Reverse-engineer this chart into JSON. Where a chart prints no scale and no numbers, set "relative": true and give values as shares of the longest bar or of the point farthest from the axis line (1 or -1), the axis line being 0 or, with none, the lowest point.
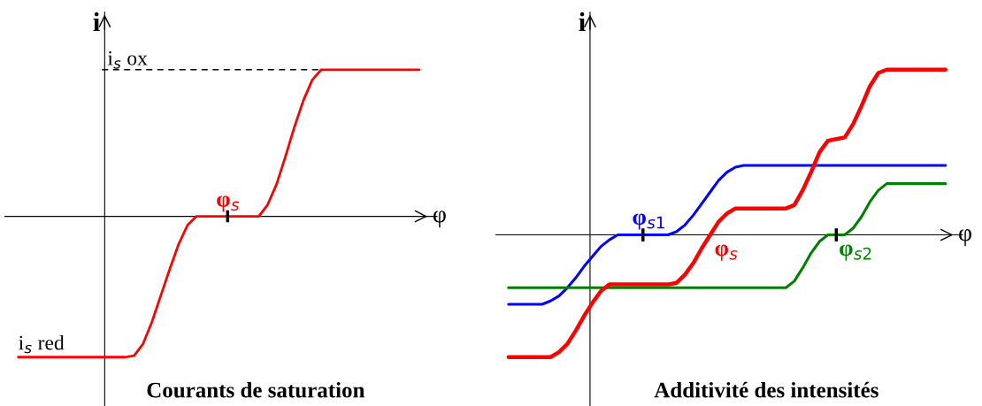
{
  "chart_data": [
    {
      "type": "line",
      "title": "Courants de saturation",
      "xlabel": "φ",
      "ylabel": "i",
      "relative": true,
      "categories": [
        null,
        null,
        null,
        null,
        null,
        null,
        null,
        null,
        null,
        null,
        null,
        null,
        null,
        null,
        null,
        null,
        null,
        null,
        null,
        null,
        null,
        null,
        null,
        null,
        null,
        null,
        null,
        null,
        null,
        null,
        null,
        null,
        null,
        null,
        null,
        null,
        null,
        null,
        null,
        null,
        null,
        null,
        null,
        null,
        null,
        null
      ],
      "series": [
        {
          "name": "φ$_{s}$",
          "color": "#ff0000",
          "values": [
            -0.96,
            -0.96,
            -0.96,
            -0.96,
            -0.96,
            -0.96,
            -0.96,
            -0.96,
            -0.96,
            -0.96,
            -0.96,
            -0.96,
            -0.96,
            -0.95,
            -0.87,
            -0.72,
            -0.54,
            -0.36,
            -0.19,
            -0.06,
            0,
            0,
            0,
            0,
            0,
            0,
            0,
            0,
            0.08,
            0.22,
            0.41,
            0.61,
            0.79,
            0.93,
            1,
            1,
            1,
            1,
            1,
            1,
            1,
            1,
            1,
            1,
            1,
            1
          ]
        }
      ],
      "ref_lines": [
        {
          "axis": "y",
          "value": 1,
          "label": "i$_{s}$ ox",
          "color": "#000000",
          "line_style": "dashed"
        }
      ],
      "annotations": [
        "i$_{s}$ red"
      ]
    },
    {
      "type": "line",
      "title": "Additivité des intensités",
      "xlabel": "φ",
      "ylabel": "i",
      "relative": true,
      "categories": [
        null,
        null,
        null,
        null,
        null,
        null,
        null,
        null,
        null,
        null,
        null,
        null,
        null,
        null,
        null,
        null,
        null,
        null,
        null,
        null,
        null,
        null,
        null,
        null,
        null,
        null,
        null,
        null,
        null,
        null,
        null,
        null,
        null,
        null,
        null,
        null,
        null,
        null,
        null,
        null,
        null,
        null,
        null,
        null,
        null,
        null,
        null,
        null,
        null,
        null,
        null,
        null,
        null
      ],
      "series": [
        {
          "name": "φ$_{s1}$",
          "color": "#0000ff",
          "values": [
            -0.42,
            -0.42,
            -0.42,
            -0.42,
            -0.42,
            -0.4,
            -0.37,
            -0.32,
            -0.26,
            -0.19,
            -0.13,
            -0.07,
            -0.03,
            0,
            0,
            0,
            0,
            0,
            0,
            0,
            0.02,
            0.06,
            0.12,
            0.19,
            0.26,
            0.33,
            0.38,
            0.41,
            0.42,
            0.42,
            0.42,
            0.42,
            0.42,
            0.42,
            0.42,
            0.42,
            0.42,
            0.42,
            0.42,
            0.42,
            0.42,
            0.42,
            0.42,
            0.42,
            0.42,
            0.42,
            0.42,
            0.42,
            0.42,
            0.42,
            0.42,
            0.42,
            0.42
          ]
        },
        {
          "name": "φ$_{s2}$",
          "color": "#008000",
          "values": [
            -0.32,
            -0.32,
            -0.32,
            -0.32,
            -0.32,
            -0.32,
            -0.32,
            -0.32,
            -0.32,
            -0.32,
            -0.32,
            -0.32,
            -0.32,
            -0.32,
            -0.32,
            -0.32,
            -0.32,
            -0.32,
            -0.32,
            -0.32,
            -0.32,
            -0.32,
            -0.32,
            -0.32,
            -0.32,
            -0.32,
            -0.32,
            -0.32,
            -0.32,
            -0.32,
            -0.32,
            -0.32,
            -0.32,
            -0.32,
            -0.28,
            -0.2,
            -0.11,
            -0.04,
            0,
            0,
            0,
            0.04,
            0.11,
            0.2,
            0.27,
            0.31,
            0.31,
            0.31,
            0.31,
            0.31,
            0.31,
            0.31,
            0.31
          ]
        },
        {
          "name": "φ$_{s}$",
          "color": "#ff0000",
          "values": [
            -0.74,
            -0.74,
            -0.74,
            -0.74,
            -0.74,
            -0.74,
            -0.71,
            -0.66,
            -0.58,
            -0.49,
            -0.41,
            -0.34,
            -0.3,
            -0.3,
            -0.3,
            -0.3,
            -0.3,
            -0.3,
            -0.3,
            -0.3,
            -0.29,
            -0.24,
            -0.17,
            -0.08,
            0,
            0.08,
            0.13,
            0.16,
            0.16,
            0.16,
            0.16,
            0.16,
            0.16,
            0.16,
            0.18,
            0.27,
            0.38,
            0.5,
            0.57,
            0.58,
            0.59,
            0.67,
            0.78,
            0.9,
            0.98,
            1,
            1,
            1,
            1,
            1,
            1,
            1,
            1
          ]
        }
      ]
    }
  ]
}
